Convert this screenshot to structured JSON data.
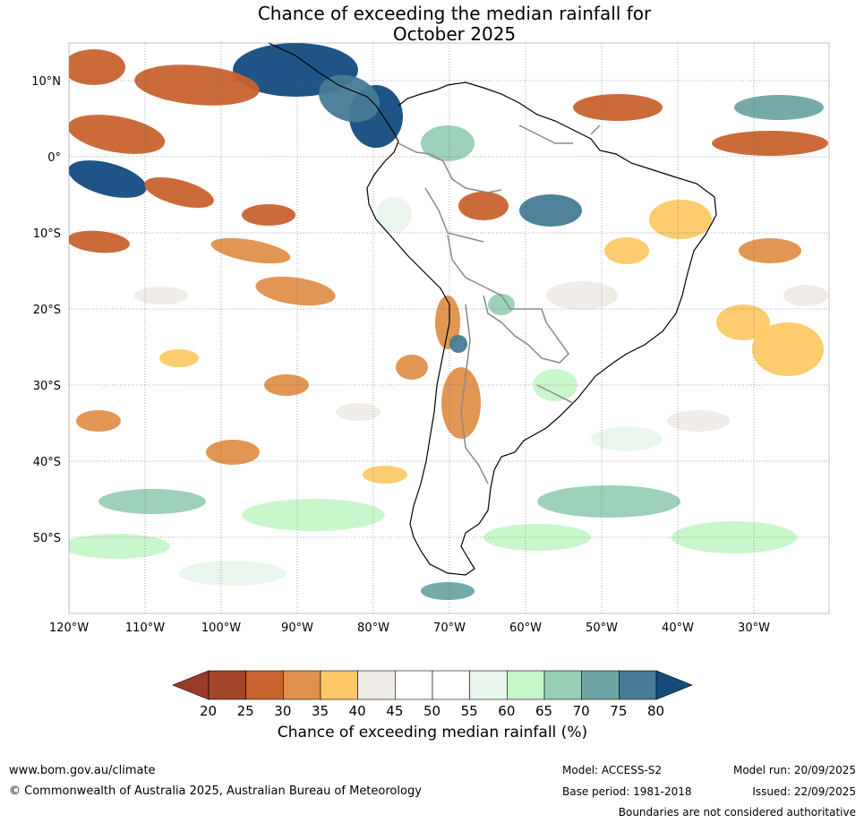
{
  "title": {
    "line1": "Chance of exceeding the median rainfall for",
    "line2": "October 2025"
  },
  "map": {
    "lat_labels": [
      "10°N",
      "0°",
      "10°S",
      "20°S",
      "30°S",
      "40°S",
      "50°S"
    ],
    "lon_labels": [
      "120°W",
      "110°W",
      "100°W",
      "90°W",
      "80°W",
      "70°W",
      "60°W",
      "50°W",
      "40°W",
      "30°W"
    ],
    "land_color": "#1a1a1a",
    "border_color": "#888888"
  },
  "colorbar": {
    "title": "Chance of exceeding median rainfall (%)",
    "ticks": [
      "20",
      "25",
      "30",
      "35",
      "40",
      "45",
      "50",
      "55",
      "60",
      "65",
      "70",
      "75",
      "80"
    ],
    "colors": [
      "#a3452a",
      "#c9632f",
      "#e0904a",
      "#fdc966",
      "#efebe7",
      "#ffffff",
      "#ffffff",
      "#e9f5ec",
      "#c6f7c9",
      "#98cfb5",
      "#6ea5a4",
      "#477b96"
    ],
    "under_color": "#993a2b",
    "over_color": "#134b7f"
  },
  "footer": {
    "url": "www.bom.gov.au/climate",
    "copyright": "© Commonwealth of Australia 2025, Australian Bureau of Meteorology",
    "model": "Model: ACCESS-S2",
    "base_period": "Base period: 1981-2018",
    "model_run": "Model run: 20/09/2025",
    "issued": "Issued: 22/09/2025",
    "disclaimer": "Boundaries are not considered authoritative"
  }
}
